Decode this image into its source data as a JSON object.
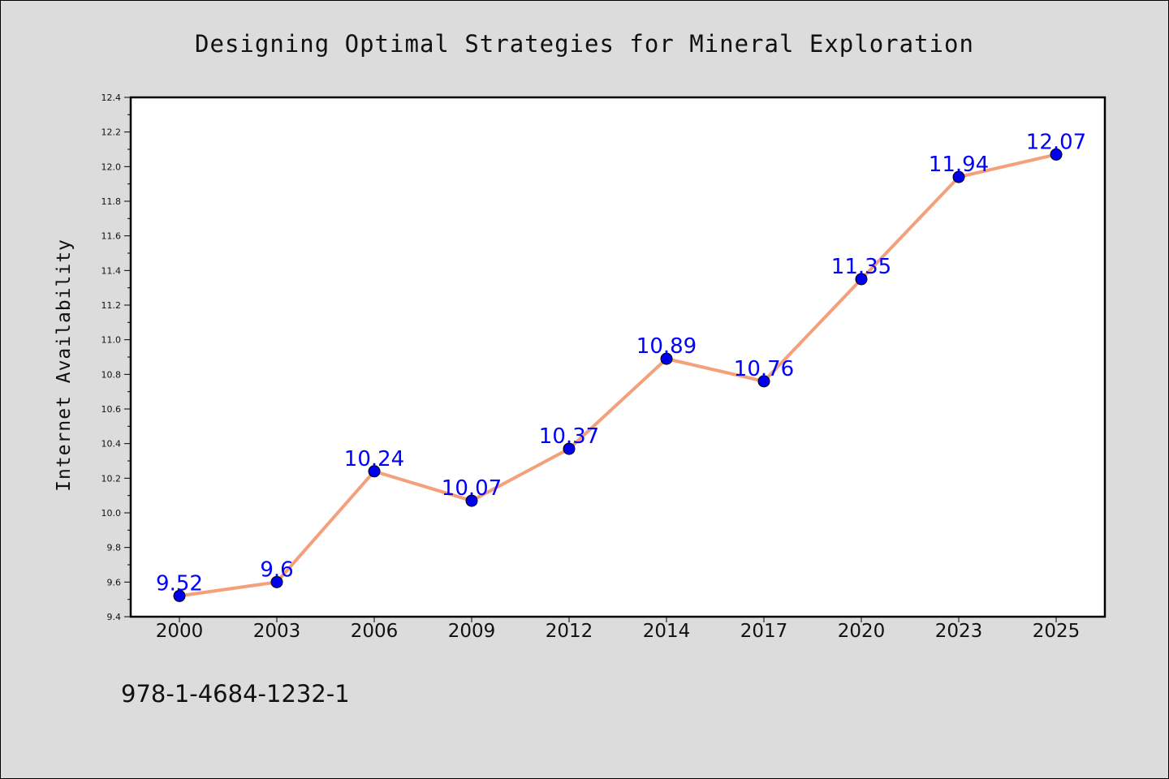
{
  "chart_data": {
    "type": "line",
    "title": "Designing Optimal Strategies for Mineral Exploration",
    "xlabel": "",
    "ylabel": "Internet Availability",
    "categories": [
      "2000",
      "2003",
      "2006",
      "2009",
      "2012",
      "2014",
      "2017",
      "2020",
      "2023",
      "2025"
    ],
    "series": [
      {
        "values": [
          9.52,
          9.6,
          10.24,
          10.07,
          10.37,
          10.89,
          10.76,
          11.35,
          11.94,
          12.07
        ],
        "data_labels": [
          "9.52",
          "9.6",
          "10.24",
          "10.07",
          "10.37",
          "10.89",
          "10.76",
          "11.35",
          "11.94",
          "12.07"
        ],
        "line_color": "#f4a07a",
        "marker_color": "#0000ee"
      }
    ],
    "ylim": [
      9.4,
      12.4
    ],
    "yticks": [
      "9.4",
      "9.6",
      "9.8",
      "10.0",
      "10.2",
      "10.4",
      "10.6",
      "10.8",
      "11.0",
      "11.2",
      "11.4",
      "11.6",
      "11.8",
      "12.0",
      "12.2",
      "12.4"
    ],
    "grid": false,
    "legend": "none"
  },
  "footer": {
    "isbn": "978-1-4684-1232-1"
  },
  "colors": {
    "background": "#dcdcdc",
    "plot_background": "#ffffff",
    "data_label": "#0000ff"
  }
}
